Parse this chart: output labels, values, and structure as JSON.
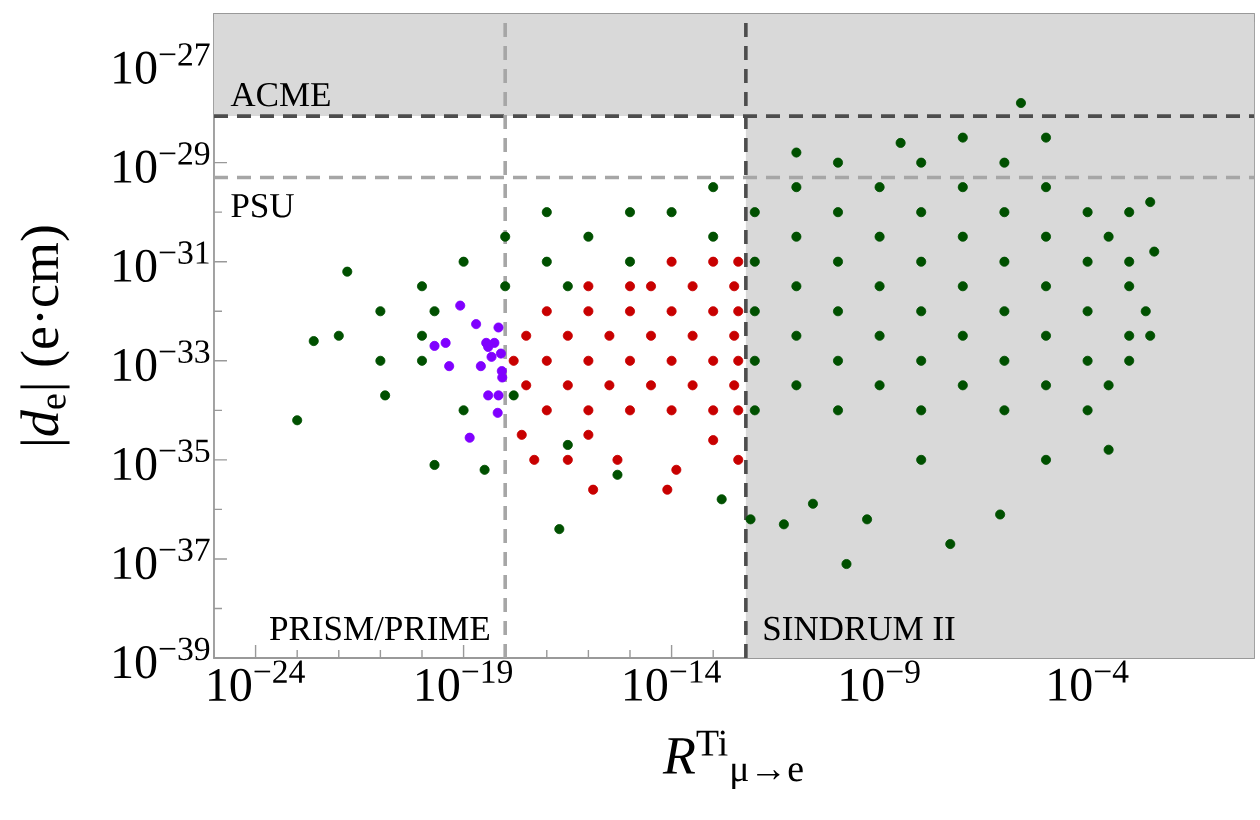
{
  "chart_data": {
    "type": "scatter",
    "xlabel": "*R*$^{Ti}$$_{μ→e}$",
    "ylabel": "|*d*$_{e}$| (e·cm)",
    "log": "xy",
    "marker": "circle",
    "xlim": [
      1e-25,
      1
    ],
    "ylim": [
      1e-39,
      1e-26
    ],
    "xticks": [
      {
        "value": 1e-25,
        "label": null
      },
      {
        "value": 1e-24,
        "label": "10$^{−24}$"
      },
      {
        "value": 1e-23,
        "label": null
      },
      {
        "value": 1e-22,
        "label": null
      },
      {
        "value": 1e-21,
        "label": null
      },
      {
        "value": 1e-20,
        "label": null
      },
      {
        "value": 1e-19,
        "label": "10$^{−19}$"
      },
      {
        "value": 1e-18,
        "label": null
      },
      {
        "value": 1e-17,
        "label": null
      },
      {
        "value": 1e-16,
        "label": null
      },
      {
        "value": 1e-15,
        "label": null
      },
      {
        "value": 1e-14,
        "label": "10$^{−14}$"
      },
      {
        "value": 1e-13,
        "label": null
      },
      {
        "value": 1e-12,
        "label": null
      },
      {
        "value": 1e-11,
        "label": null
      },
      {
        "value": 1e-10,
        "label": null
      },
      {
        "value": 1e-09,
        "label": "10$^{−9}$"
      },
      {
        "value": 1e-08,
        "label": null
      },
      {
        "value": 1e-07,
        "label": null
      },
      {
        "value": 1e-06,
        "label": null
      },
      {
        "value": 1e-05,
        "label": null
      },
      {
        "value": 0.0001,
        "label": "10$^{−4}$"
      },
      {
        "value": 0.001,
        "label": null
      },
      {
        "value": 0.01,
        "label": null
      },
      {
        "value": 0.1,
        "label": null
      },
      {
        "value": 1,
        "label": null
      }
    ],
    "yticks": [
      {
        "value": 1e-39,
        "label": "10$^{−39}$"
      },
      {
        "value": 1e-38,
        "label": null
      },
      {
        "value": 1e-37,
        "label": "10$^{−37}$"
      },
      {
        "value": 1e-36,
        "label": null
      },
      {
        "value": 1e-35,
        "label": "10$^{−35}$"
      },
      {
        "value": 1e-34,
        "label": null
      },
      {
        "value": 1e-33,
        "label": "10$^{−33}$"
      },
      {
        "value": 1e-32,
        "label": null
      },
      {
        "value": 1e-31,
        "label": "10$^{−31}$"
      },
      {
        "value": 1e-30,
        "label": null
      },
      {
        "value": 1e-29,
        "label": "10$^{−29}$"
      },
      {
        "value": 1e-28,
        "label": null
      },
      {
        "value": 1e-27,
        "label": "10$^{−27}$"
      },
      {
        "value": 1e-26,
        "label": null
      }
    ],
    "bands": [
      {
        "axis": "x",
        "from": 6.1e-13,
        "to": 1,
        "color": "#d9d9d9"
      },
      {
        "axis": "y",
        "from": 8.7e-29,
        "to": 1e-26,
        "color": "#d9d9d9"
      }
    ],
    "ref_lines": [
      {
        "axis": "y",
        "value": 8.7e-29,
        "label": "ACME",
        "color": "#4d4d4d",
        "line_style": "dashed"
      },
      {
        "axis": "y",
        "value": 5e-30,
        "label": "PSU",
        "color": "#a6a6a6",
        "line_style": "dashed"
      },
      {
        "axis": "x",
        "value": 1e-18,
        "label": "PRISM/PRIME",
        "color": "#a6a6a6",
        "line_style": "dashed"
      },
      {
        "axis": "x",
        "value": 6.1e-13,
        "label": "SINDRUM II",
        "color": "#4d4d4d",
        "line_style": "dashed"
      }
    ],
    "series": [
      {
        "color": "#005000",
        "x": [
          2.5e-06,
          1e-07,
          1e-05,
          3.2e-09,
          1e-11,
          1e-10,
          1e-08,
          1e-06,
          1e-13,
          1e-11,
          1e-09,
          1e-07,
          1e-05,
          1e-17,
          1e-15,
          1e-14,
          1e-12,
          1e-10,
          1e-08,
          1e-06,
          0.0001,
          0.001,
          1e-18,
          1e-16,
          1e-13,
          1e-11,
          1e-09,
          1e-07,
          1e-05,
          0.00032,
          1e-19,
          1e-17,
          1e-15,
          1e-12,
          1e-10,
          1e-08,
          1e-06,
          0.0001,
          0.001,
          1e-20,
          1e-18,
          3.2e-17,
          1e-11,
          1e-09,
          1e-07,
          1e-05,
          0.001,
          1e-21,
          2e-20,
          1e-12,
          1e-10,
          1e-08,
          1e-06,
          0.0001,
          0.0025,
          1e-22,
          1e-20,
          1e-11,
          1e-09,
          1e-07,
          1e-05,
          0.001,
          1e-21,
          1e-20,
          1e-12,
          1e-10,
          1e-08,
          1e-06,
          0.0001,
          0.001,
          1.6e-18,
          1e-11,
          1e-09,
          1e-07,
          1e-05,
          0.00032,
          1e-19,
          1e-12,
          1e-10,
          1e-08,
          1e-06,
          0.0001,
          3.2e-17,
          1e-23,
          2.5e-23,
          1.3e-21,
          2e-20,
          3.2e-19,
          2e-17,
          1.6e-10,
          5e-08,
          5e-12,
          5e-10,
          7.9e-07,
          2.5e-11,
          7.9e-13,
          1e-08,
          1e-05,
          0.00032,
          5e-16,
          1.6e-13,
          1.6e-22,
          0.004,
          0.0032,
          0.0032
        ],
        "values": [
          1.6e-28,
          3.2e-29,
          3.2e-29,
          2.5e-29,
          1.6e-29,
          1e-29,
          1e-29,
          1e-29,
          3.2e-30,
          3.2e-30,
          3.2e-30,
          3.2e-30,
          3.2e-30,
          1e-30,
          1e-30,
          1e-30,
          1e-30,
          1e-30,
          1e-30,
          1e-30,
          1e-30,
          1e-30,
          3.2e-31,
          3.2e-31,
          3.2e-31,
          3.2e-31,
          3.2e-31,
          3.2e-31,
          3.2e-31,
          3.2e-31,
          1e-31,
          1e-31,
          1e-31,
          1e-31,
          1e-31,
          1e-31,
          1e-31,
          1e-31,
          1e-31,
          3.2e-32,
          3.2e-32,
          3.2e-32,
          3.2e-32,
          3.2e-32,
          3.2e-32,
          3.2e-32,
          3.2e-32,
          1e-32,
          1e-32,
          1e-32,
          1e-32,
          1e-32,
          1e-32,
          1e-32,
          1e-32,
          3.2e-33,
          3.2e-33,
          3.2e-33,
          3.2e-33,
          3.2e-33,
          3.2e-33,
          3.2e-33,
          1e-33,
          1e-33,
          1e-33,
          1e-33,
          1e-33,
          1e-33,
          1e-33,
          1e-33,
          2e-34,
          3.2e-34,
          3.2e-34,
          3.2e-34,
          3.2e-34,
          3.2e-34,
          1e-34,
          1e-34,
          1e-34,
          1e-34,
          1e-34,
          1e-34,
          2e-35,
          6.3e-35,
          2.5e-33,
          2e-34,
          7.9e-36,
          6.3e-36,
          4e-37,
          7.9e-38,
          2e-37,
          5e-37,
          6.3e-37,
          7.9e-37,
          1.3e-36,
          6.3e-37,
          1e-35,
          1e-35,
          1.6e-35,
          5e-36,
          1.6e-36,
          6.3e-32,
          1.6e-31,
          3.2e-33,
          1.6e-30
        ]
      },
      {
        "color": "#c80000",
        "x": [
          1e-14,
          1e-13,
          4e-13,
          1e-16,
          1e-15,
          3.2e-15,
          3.2e-14,
          3.2e-13,
          1e-17,
          1e-16,
          1e-15,
          1e-14,
          1e-13,
          4e-13,
          3.2e-18,
          3.2e-17,
          3.2e-16,
          3.2e-15,
          3.2e-14,
          3.2e-13,
          1.6e-18,
          1e-17,
          1e-16,
          1e-15,
          1e-14,
          1e-13,
          4e-13,
          3.2e-18,
          3.2e-17,
          3.2e-16,
          3.2e-15,
          3.2e-14,
          3.2e-13,
          1e-17,
          1e-16,
          1e-15,
          1e-14,
          1e-13,
          4e-13,
          5e-18,
          3.2e-17,
          1.3e-16,
          5e-16,
          7.9e-15,
          1.3e-14,
          4e-13,
          2.5e-18,
          1e-16,
          1e-13
        ],
        "values": [
          1e-31,
          1e-31,
          1e-31,
          3.2e-32,
          3.2e-32,
          3.2e-32,
          3.2e-32,
          3.2e-32,
          1e-32,
          1e-32,
          1e-32,
          1e-32,
          1e-32,
          1e-32,
          3.2e-33,
          3.2e-33,
          3.2e-33,
          3.2e-33,
          3.2e-33,
          3.2e-33,
          1e-33,
          1e-33,
          1e-33,
          1e-33,
          1e-33,
          1e-33,
          1e-33,
          3.2e-34,
          3.2e-34,
          3.2e-34,
          3.2e-34,
          3.2e-34,
          3.2e-34,
          1e-34,
          1e-34,
          1e-34,
          1e-34,
          1e-34,
          1e-34,
          1e-35,
          1e-35,
          2.5e-36,
          1e-35,
          2.5e-36,
          6.3e-36,
          1e-35,
          3.2e-35,
          3.2e-35,
          2.5e-35
        ]
      },
      {
        "color": "#8000ff",
        "x": [
          8.3e-20,
          2e-19,
          6.9e-19,
          2e-20,
          3.7e-20,
          3.5e-19,
          5.5e-19,
          3.9e-19,
          7.9e-19,
          4.7e-19,
          4.5e-20,
          2.6e-19,
          8.3e-19,
          8.5e-19,
          3.9e-19,
          6.9e-19,
          6.6e-19,
          1.4e-19
        ],
        "values": [
          1.3e-32,
          5.5e-33,
          4.7e-33,
          2e-33,
          2.3e-33,
          2.3e-33,
          2.3e-33,
          1.9e-33,
          1.4e-33,
          1.2e-33,
          7.8e-34,
          7.8e-34,
          6.2e-34,
          4.6e-34,
          2e-34,
          2e-34,
          8.9e-35,
          2.8e-35
        ]
      }
    ]
  }
}
